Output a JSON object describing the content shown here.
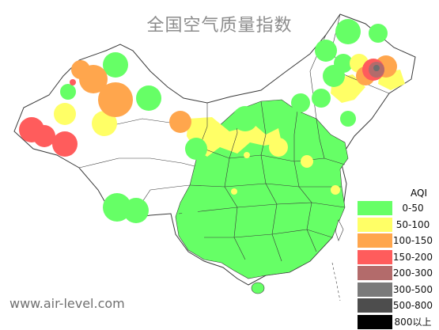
{
  "map": {
    "title": "全国空气质量指数",
    "watermark": "www.air-level.com",
    "colors": {
      "land": "#ffffff",
      "border": "#3a3a3a",
      "good": "#66ff66",
      "moderate": "#ffff66",
      "usg": "#ffa64d",
      "unhealthy": "#ff5c5c",
      "very_unhealthy": "#b36b6b",
      "hazardous": "#6e6e6e"
    }
  },
  "legend": {
    "title": "AQI",
    "items": [
      {
        "label": "0-50",
        "color": "#66ff66"
      },
      {
        "label": "50-100",
        "color": "#ffff66"
      },
      {
        "label": "100-150",
        "color": "#ffa64d"
      },
      {
        "label": "150-200",
        "color": "#ff5c5c"
      },
      {
        "label": "200-300",
        "color": "#b36b6b"
      },
      {
        "label": "300-500",
        "color": "#7a7a7a"
      },
      {
        "label": "500-800",
        "color": "#4d4d4d"
      },
      {
        "label": "800以上",
        "color": "#000000"
      }
    ]
  }
}
